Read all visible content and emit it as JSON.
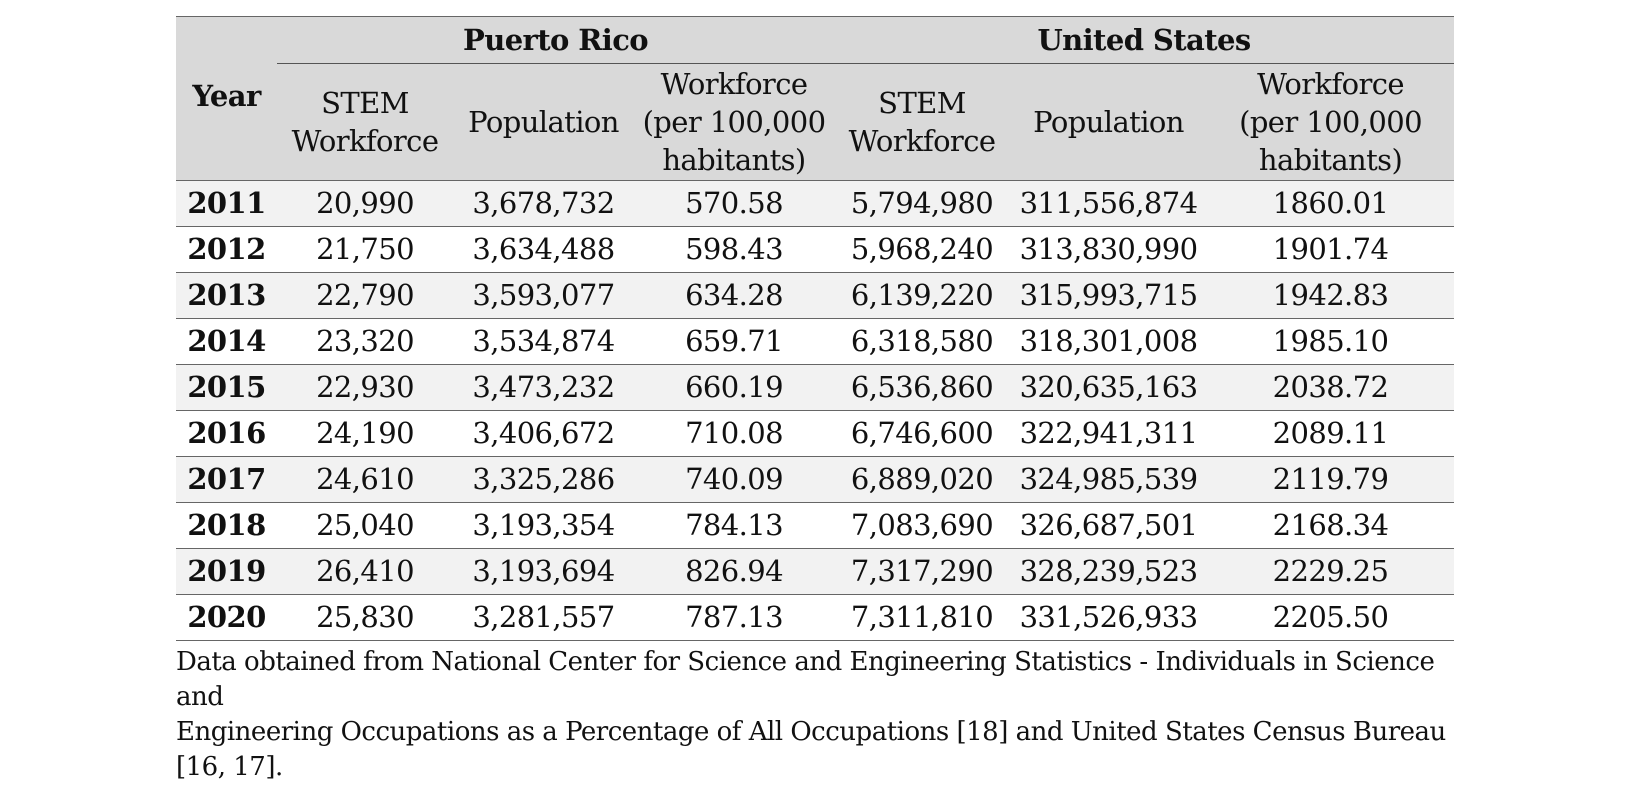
{
  "table": {
    "group_headers": {
      "year": "Year",
      "puerto_rico": "Puerto Rico",
      "united_states": "United States"
    },
    "column_headers": {
      "pr_stem": [
        "STEM",
        "Workforce"
      ],
      "pr_pop": [
        "Population"
      ],
      "pr_wf": [
        "Workforce",
        "(per 100,000",
        "habitants)"
      ],
      "us_stem": [
        "STEM",
        "Workforce"
      ],
      "us_pop": [
        "Population"
      ],
      "us_wf": [
        "Workforce",
        "(per 100,000",
        "habitants)"
      ]
    },
    "rows": [
      [
        "2011",
        "20,990",
        "3,678,732",
        "570.58",
        "5,794,980",
        "311,556,874",
        "1860.01"
      ],
      [
        "2012",
        "21,750",
        "3,634,488",
        "598.43",
        "5,968,240",
        "313,830,990",
        "1901.74"
      ],
      [
        "2013",
        "22,790",
        "3,593,077",
        "634.28",
        "6,139,220",
        "315,993,715",
        "1942.83"
      ],
      [
        "2014",
        "23,320",
        "3,534,874",
        "659.71",
        "6,318,580",
        "318,301,008",
        "1985.10"
      ],
      [
        "2015",
        "22,930",
        "3,473,232",
        "660.19",
        "6,536,860",
        "320,635,163",
        "2038.72"
      ],
      [
        "2016",
        "24,190",
        "3,406,672",
        "710.08",
        "6,746,600",
        "322,941,311",
        "2089.11"
      ],
      [
        "2017",
        "24,610",
        "3,325,286",
        "740.09",
        "6,889,020",
        "324,985,539",
        "2119.79"
      ],
      [
        "2018",
        "25,040",
        "3,193,354",
        "784.13",
        "7,083,690",
        "326,687,501",
        "2168.34"
      ],
      [
        "2019",
        "26,410",
        "3,193,694",
        "826.94",
        "7,317,290",
        "328,239,523",
        "2229.25"
      ],
      [
        "2020",
        "25,830",
        "3,281,557",
        "787.13",
        "7,311,810",
        "331,526,933",
        "2205.50"
      ]
    ]
  },
  "note": {
    "lines": [
      "Data obtained from National Center for Science and Engineering Statistics - Individuals in Science and",
      "Engineering Occupations as a Percentage of All Occupations [18] and United States Census Bureau [16, 17]."
    ]
  }
}
